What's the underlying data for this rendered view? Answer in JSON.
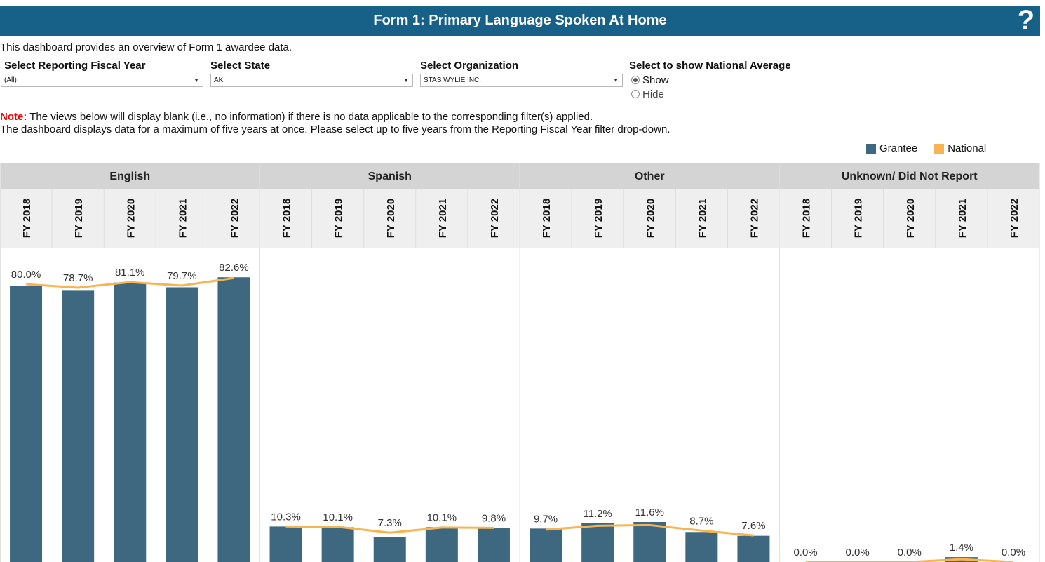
{
  "header": {
    "title": "Form 1: Primary Language Spoken At Home",
    "help": "?"
  },
  "description": "This dashboard provides an overview of Form 1 awardee data.",
  "filters": {
    "year": {
      "label": "Select Reporting Fiscal Year",
      "value": "(All)"
    },
    "state": {
      "label": "Select State",
      "value": "AK"
    },
    "org": {
      "label": "Select Organization",
      "value": "STAS WYLIE INC."
    },
    "national": {
      "label": "Select to show National Average",
      "options": [
        "Show",
        "Hide"
      ],
      "selected": "Show"
    }
  },
  "note": {
    "label": "Note:",
    "line1": " The views below will display blank (i.e., no information) if there is no data applicable to the corresponding filter(s) applied.",
    "line2": "The dashboard displays data for a maximum of five years at once. Please select up to five years from the Reporting Fiscal Year filter drop-down."
  },
  "legend": [
    {
      "name": "Grantee",
      "color": "#3d6880"
    },
    {
      "name": "National",
      "color": "#f8b450"
    }
  ],
  "chart_data": {
    "type": "bar",
    "groups": [
      "English",
      "Spanish",
      "Other",
      "Unknown/ Did Not Report"
    ],
    "categories": [
      "FY 2018",
      "FY 2019",
      "FY 2020",
      "FY 2021",
      "FY 2022"
    ],
    "series": [
      {
        "name": "Grantee",
        "type": "bar",
        "color": "#3d6880",
        "values": [
          [
            80.0,
            78.7,
            81.1,
            79.7,
            82.6
          ],
          [
            10.3,
            10.1,
            7.3,
            10.1,
            9.8
          ],
          [
            9.7,
            11.2,
            11.6,
            8.7,
            7.6
          ],
          [
            0.0,
            0.0,
            0.0,
            1.4,
            0.0
          ]
        ],
        "labels": [
          [
            "80.0%",
            "78.7%",
            "81.1%",
            "79.7%",
            "82.6%"
          ],
          [
            "10.3%",
            "10.1%",
            "7.3%",
            "10.1%",
            "9.8%"
          ],
          [
            "9.7%",
            "11.2%",
            "11.6%",
            "8.7%",
            "7.6%"
          ],
          [
            "0.0%",
            "0.0%",
            "0.0%",
            "1.4%",
            "0.0%"
          ]
        ]
      },
      {
        "name": "National",
        "type": "line",
        "color": "#f8b450",
        "values": [
          [
            80.6,
            79.6,
            81.2,
            80.2,
            82.4
          ],
          [
            10.3,
            10.2,
            8.5,
            10.0,
            9.9
          ],
          [
            9.4,
            10.5,
            10.7,
            9.1,
            7.7
          ],
          [
            0.0,
            0.0,
            0.0,
            0.8,
            0.0
          ]
        ]
      }
    ],
    "ylim": [
      0,
      100
    ],
    "grid": false,
    "legend_position": "top-right"
  }
}
